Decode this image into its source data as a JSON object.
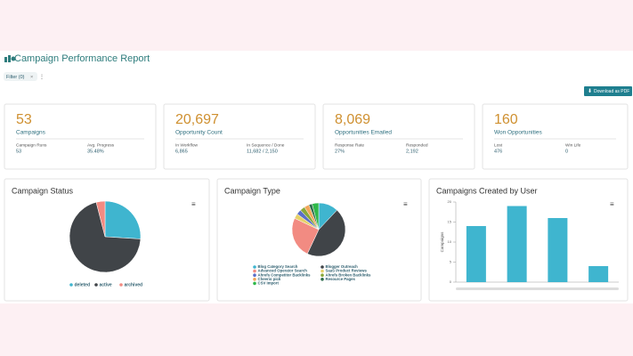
{
  "header": {
    "title": "Campaign Performance Report",
    "filter": "Filter (0)",
    "download": "Download as PDF"
  },
  "cards": [
    {
      "value": "53",
      "label": "Campaigns",
      "stats": [
        {
          "label": "Campaign Runs",
          "value": "53"
        },
        {
          "label": "Avg. Progress",
          "value": "35.48%"
        }
      ]
    },
    {
      "value": "20,697",
      "label": "Opportunity Count",
      "stats": [
        {
          "label": "In Workflow",
          "value": "6,865"
        },
        {
          "label": "In Sequence / Done",
          "value": "11,682 / 2,150"
        }
      ]
    },
    {
      "value": "8,069",
      "label": "Opportunities Emailed",
      "stats": [
        {
          "label": "Response Rate",
          "value": "27%"
        },
        {
          "label": "Responded",
          "value": "2,192"
        }
      ]
    },
    {
      "value": "160",
      "label": "Won Opportunities",
      "stats": [
        {
          "label": "Lost",
          "value": "476"
        },
        {
          "label": "Win Life",
          "value": "0"
        }
      ]
    }
  ],
  "charts": [
    {
      "type": "pie",
      "title": "Campaign Status",
      "categories": [
        "deleted",
        "active",
        "archived"
      ],
      "values": [
        26,
        70,
        4
      ],
      "colors": [
        "#3fb5cf",
        "#404448",
        "#f28b82"
      ]
    },
    {
      "type": "pie",
      "title": "Campaign Type",
      "categories": [
        "Blog Category Search",
        "Blogger Outreach",
        "Advanced Operator Search",
        "SaaS Product Reviews",
        "Ahrefs Competitor Backlinks",
        "Ahrefs Broken Backlinks",
        "Cheerio pick",
        "Resource Pages",
        "CSV Import"
      ],
      "values": [
        12,
        45,
        25,
        3,
        3,
        3,
        3,
        2,
        4
      ],
      "colors": [
        "#3fb5cf",
        "#404448",
        "#f28b82",
        "#e6d16a",
        "#5b6fc9",
        "#8aa83a",
        "#f2a65a",
        "#2f6f4f",
        "#2fb84a"
      ]
    },
    {
      "type": "bar",
      "title": "Campaigns Created by User",
      "y_label": "Campaigns",
      "categories": [
        null,
        null,
        null,
        null
      ],
      "values": [
        14,
        19,
        16,
        4
      ],
      "color": "#3fb5cf",
      "ylim": [
        0,
        20
      ],
      "yticks": [
        0,
        5,
        10,
        15,
        20
      ]
    }
  ]
}
